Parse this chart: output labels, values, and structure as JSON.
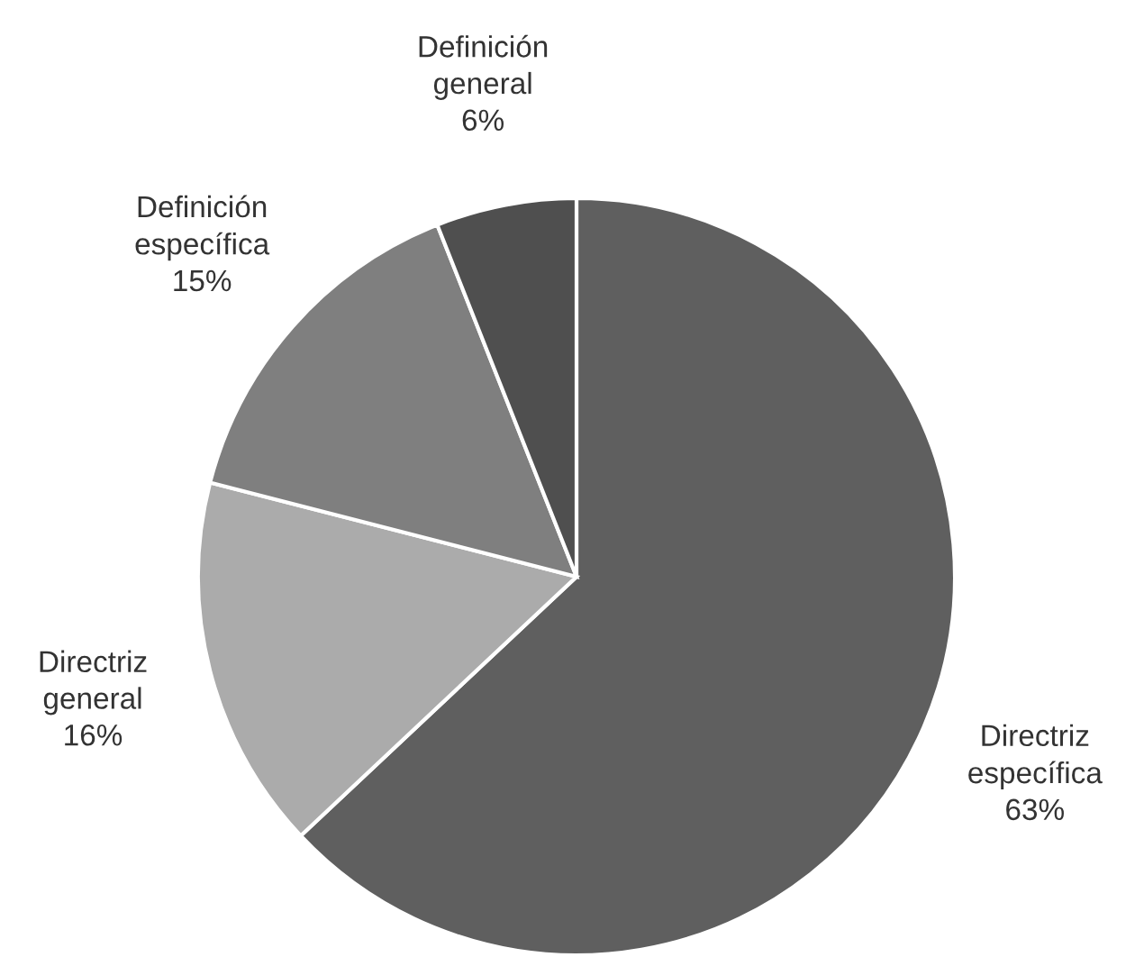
{
  "chart_data": {
    "type": "pie",
    "categories": [
      "Directriz específica",
      "Directriz general",
      "Definición específica",
      "Definición general"
    ],
    "values": [
      63,
      16,
      15,
      6
    ],
    "colors": [
      "#5f5f5f",
      "#ababab",
      "#7f7f7f",
      "#4f4f4f"
    ],
    "value_labels": [
      "63%",
      "16%",
      "15%",
      "6%"
    ]
  }
}
